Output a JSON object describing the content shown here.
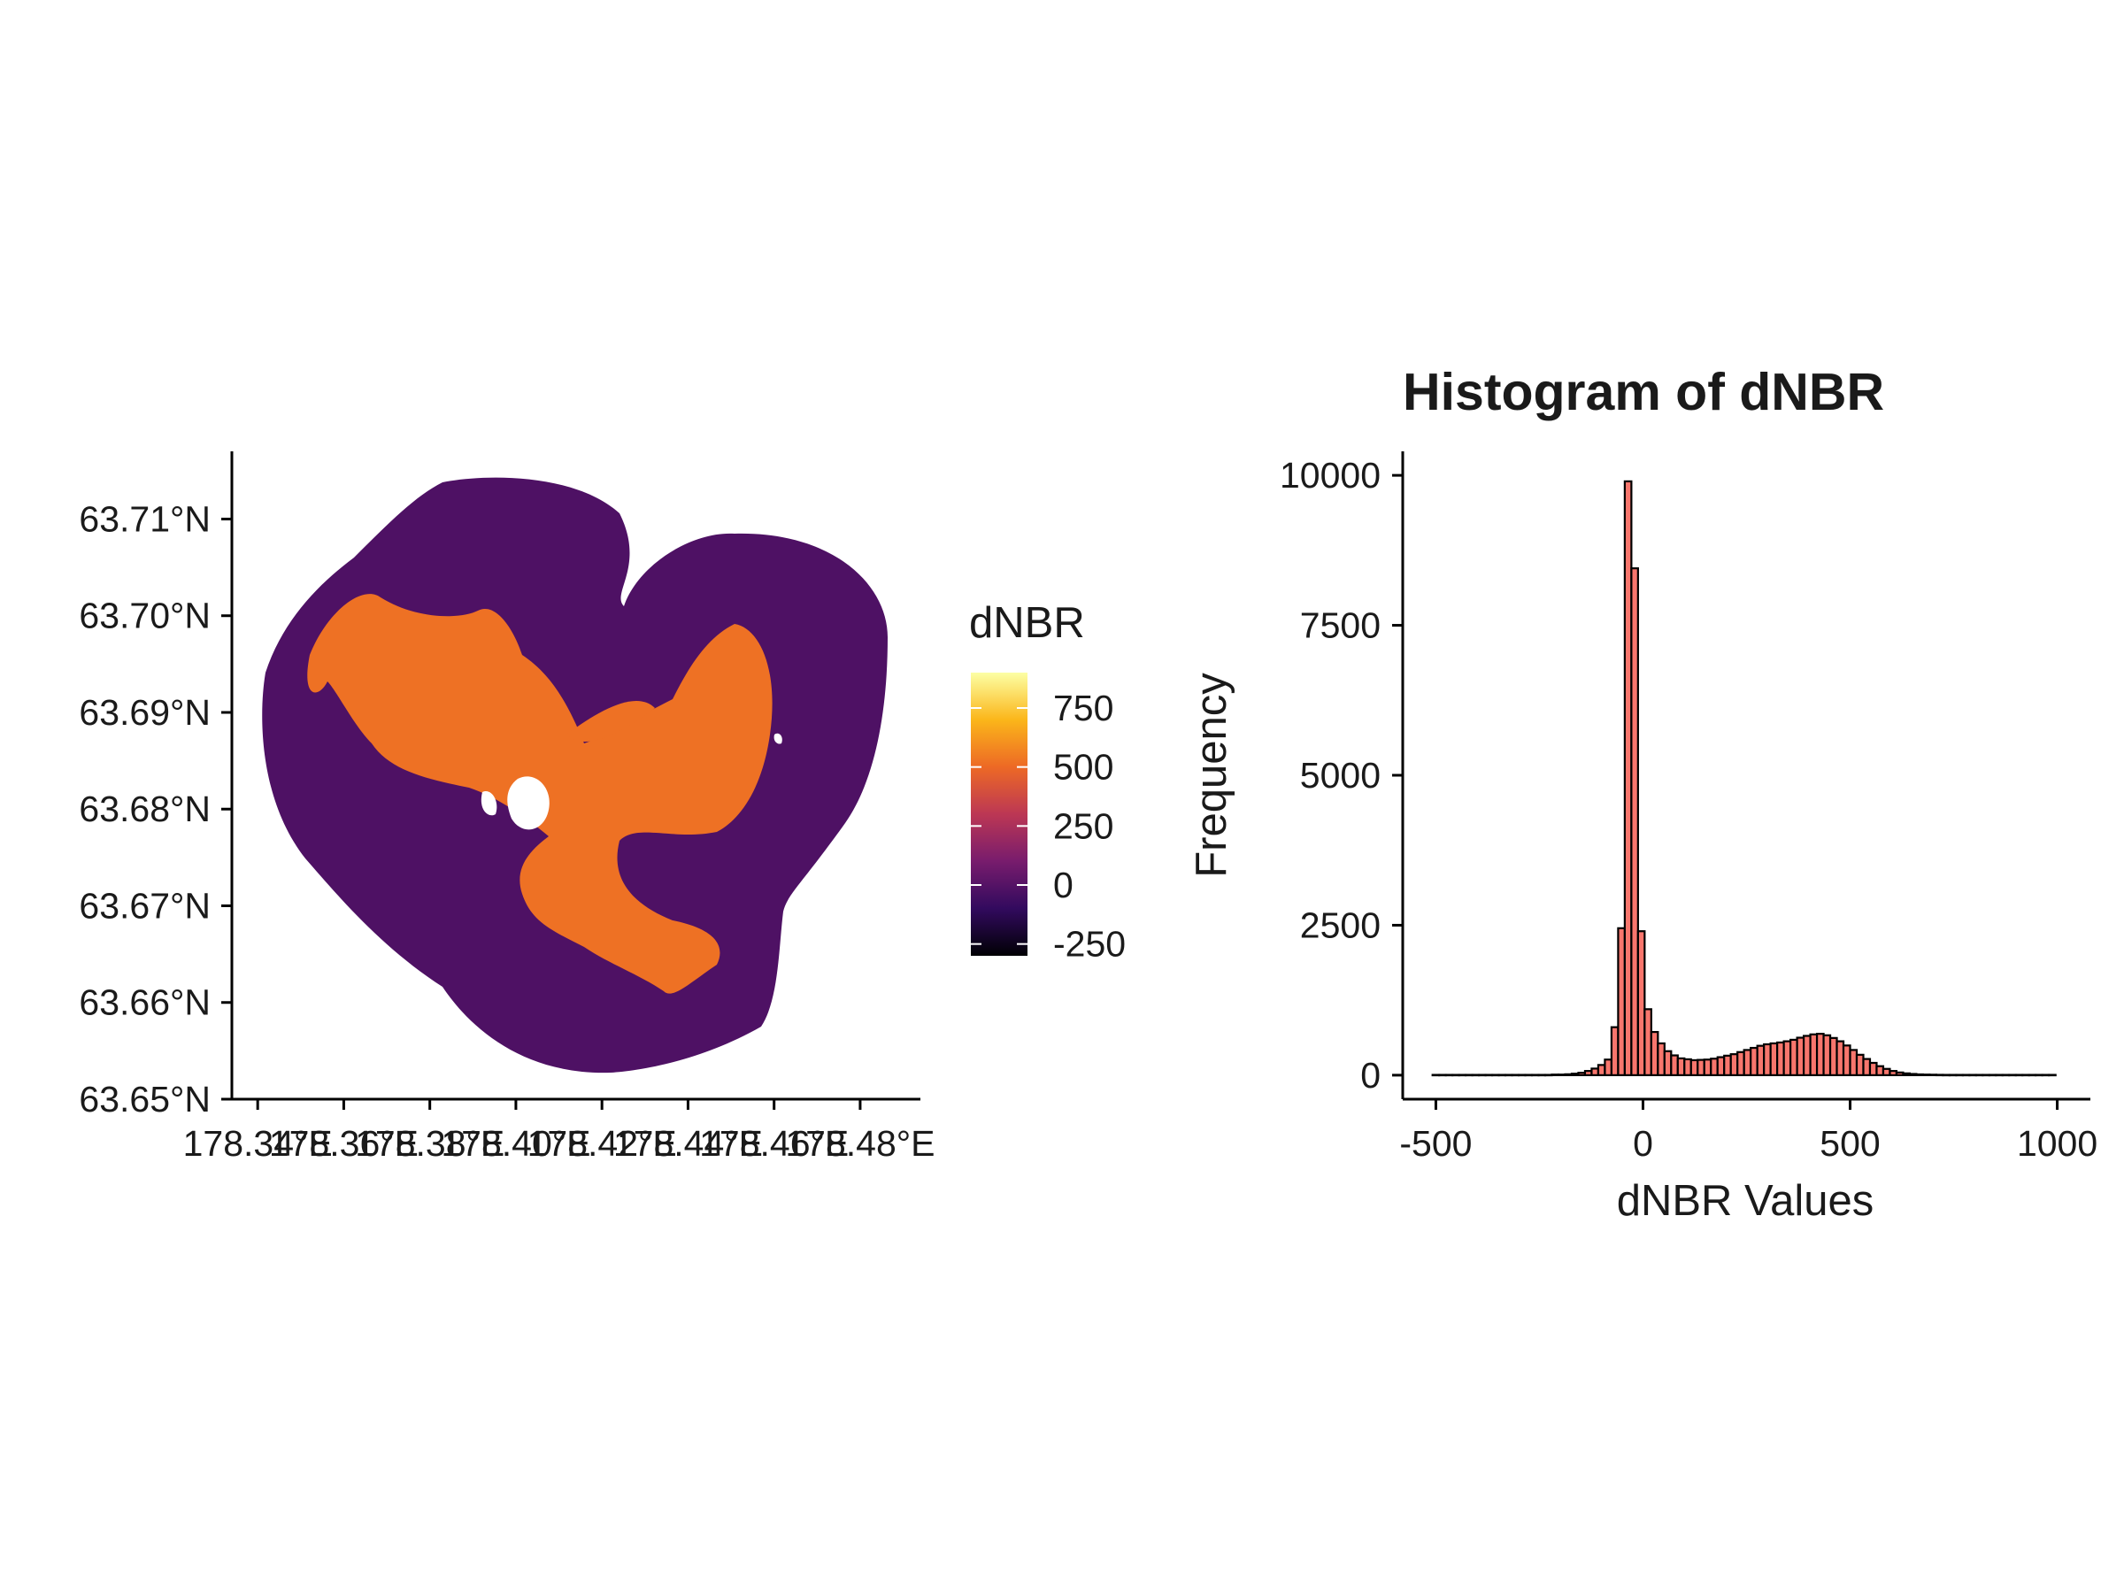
{
  "chart_data": [
    {
      "type": "heatmap",
      "title": "",
      "xlabel": "",
      "ylabel": "",
      "x_ticks": [
        "178.34°E",
        "178.36°E",
        "178.38°E",
        "178.40°E",
        "178.42°E",
        "178.44°E",
        "178.46°E",
        "178.48°E"
      ],
      "x_tick_values": [
        178.34,
        178.36,
        178.38,
        178.4,
        178.42,
        178.44,
        178.46,
        178.48
      ],
      "y_ticks": [
        "63.65°N",
        "63.66°N",
        "63.67°N",
        "63.68°N",
        "63.69°N",
        "63.70°N",
        "63.71°N"
      ],
      "y_tick_values": [
        63.65,
        63.66,
        63.67,
        63.68,
        63.69,
        63.7,
        63.71
      ],
      "xlim": [
        178.334,
        178.494
      ],
      "ylim": [
        63.65,
        63.717
      ],
      "grid": false,
      "legend": {
        "title": "dNBR",
        "placement": "right",
        "ticks": [
          "750",
          "500",
          "250",
          "0",
          "-250"
        ],
        "tick_values": [
          750,
          500,
          250,
          0,
          -250
        ],
        "range": [
          -300,
          900
        ],
        "colormap": "inferno",
        "colors": [
          "#000004",
          "#320a5e",
          "#781c6d",
          "#bc3754",
          "#ed6925",
          "#fbb61a",
          "#fcffa4"
        ]
      },
      "background_value": -20,
      "burn_value": 520,
      "no_data_color": "#ffffff"
    },
    {
      "type": "bar",
      "title": "Histogram of dNBR",
      "xlabel": "dNBR Values",
      "ylabel": "Frequency",
      "x_ticks": [
        "-500",
        "0",
        "500",
        "1000"
      ],
      "x_tick_values": [
        -500,
        0,
        500,
        1000
      ],
      "y_ticks": [
        "0",
        "2500",
        "5000",
        "7500",
        "10000"
      ],
      "y_tick_values": [
        0,
        2500,
        5000,
        7500,
        10000
      ],
      "xlim": [
        -580,
        1080
      ],
      "ylim": [
        -400,
        10400
      ],
      "bin_width": 16,
      "x": [
        -500,
        -484,
        -468,
        -452,
        -436,
        -420,
        -404,
        -388,
        -372,
        -356,
        -340,
        -324,
        -308,
        -292,
        -276,
        -260,
        -244,
        -228,
        -212,
        -196,
        -180,
        -164,
        -148,
        -132,
        -116,
        -100,
        -84,
        -68,
        -52,
        -36,
        -20,
        -4,
        12,
        28,
        44,
        60,
        76,
        92,
        108,
        124,
        140,
        156,
        172,
        188,
        204,
        220,
        236,
        252,
        268,
        284,
        300,
        316,
        332,
        348,
        364,
        380,
        396,
        412,
        428,
        444,
        460,
        476,
        492,
        508,
        524,
        540,
        556,
        572,
        588,
        604,
        620,
        636,
        652,
        668,
        684,
        700,
        716,
        732,
        748,
        764,
        780,
        796,
        812,
        828,
        844,
        860,
        876,
        892,
        908,
        924,
        940,
        956,
        972,
        988
      ],
      "values": [
        5,
        5,
        5,
        5,
        5,
        5,
        5,
        5,
        5,
        5,
        5,
        5,
        5,
        5,
        5,
        5,
        5,
        5,
        10,
        10,
        15,
        25,
        40,
        70,
        110,
        170,
        260,
        800,
        2450,
        9900,
        8450,
        2400,
        1100,
        720,
        530,
        400,
        330,
        280,
        265,
        250,
        255,
        260,
        275,
        300,
        325,
        350,
        385,
        420,
        455,
        490,
        515,
        530,
        545,
        565,
        590,
        625,
        655,
        680,
        690,
        665,
        620,
        565,
        495,
        420,
        340,
        270,
        205,
        150,
        105,
        70,
        45,
        30,
        20,
        13,
        10,
        8,
        6,
        5,
        5,
        5,
        5,
        5,
        5,
        5,
        5,
        5,
        5,
        5,
        5,
        5,
        5,
        5,
        5,
        5
      ],
      "bar_fill": "#f8766d",
      "bar_outline": "#000000",
      "grid": false
    }
  ]
}
